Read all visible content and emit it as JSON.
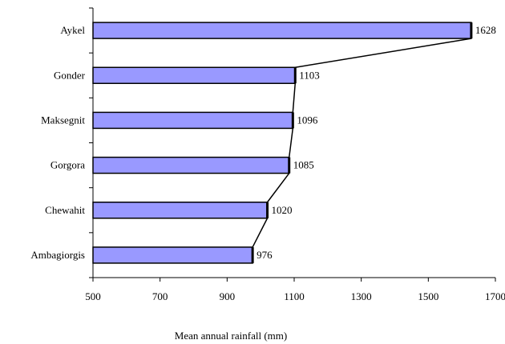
{
  "chart_data": {
    "type": "bar",
    "orientation": "horizontal",
    "categories": [
      "Aykel",
      "Gonder",
      "Maksegnit",
      "Gorgora",
      "Chewahit",
      "Ambagiorgis"
    ],
    "values": [
      1628,
      1103,
      1096,
      1085,
      1020,
      976
    ],
    "value_labels": [
      "1628",
      "1103",
      "1096",
      "1085",
      "1020",
      "976"
    ],
    "xlabel": "Mean annual rainfall (mm)",
    "ylabel": "",
    "title": "",
    "xlim": [
      500,
      1700
    ],
    "xticks": [
      500,
      700,
      900,
      1100,
      1300,
      1500,
      1700
    ],
    "xtick_labels": [
      "500",
      "700",
      "900",
      "1100",
      "1300",
      "1500",
      "1700"
    ],
    "grid": false,
    "legend": "none",
    "connecting_line": true,
    "colors": {
      "bar_fill": "#9999ff",
      "bar_stroke": "#000000",
      "line": "#000000"
    }
  }
}
